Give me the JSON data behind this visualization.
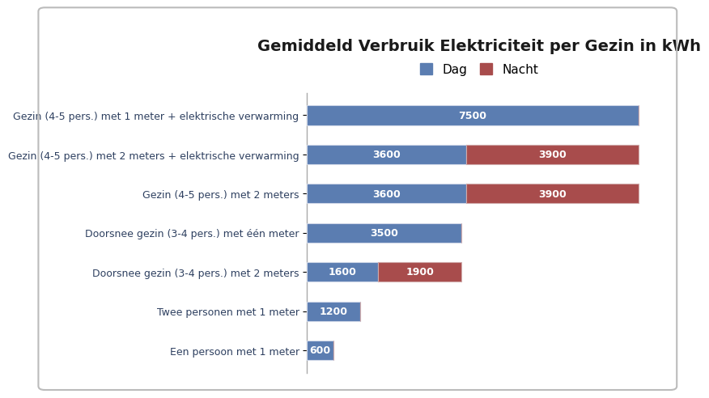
{
  "title": "Gemiddeld Verbruik Elektriciteit per Gezin in kWh",
  "categories": [
    "Gezin (4-5 pers.) met 1 meter + elektrische verwarming",
    "Gezin (4-5 pers.) met 2 meters + elektrische verwarming",
    "Gezin (4-5 pers.) met 2 meters",
    "Doorsnee gezin (3-4 pers.) met één meter",
    "Doorsnee gezin (3-4 pers.) met 2 meters",
    "Twee personen met 1 meter",
    "Een persoon met 1 meter"
  ],
  "dag_values": [
    7500,
    3600,
    3600,
    3500,
    1600,
    1200,
    600
  ],
  "nacht_values": [
    0,
    3900,
    3900,
    0,
    1900,
    0,
    0
  ],
  "dag_color": "#5B7DB1",
  "nacht_color": "#A84C4C",
  "label_color": "#FFFFFF",
  "background_color": "#FFFFFF",
  "border_color": "#BBBBBB",
  "title_fontsize": 14,
  "bar_label_fontsize": 9,
  "legend_fontsize": 11,
  "ytick_fontsize": 9,
  "bar_height": 0.5,
  "xlim": [
    0,
    7800
  ],
  "legend_dag": "Dag",
  "legend_nacht": "Nacht"
}
